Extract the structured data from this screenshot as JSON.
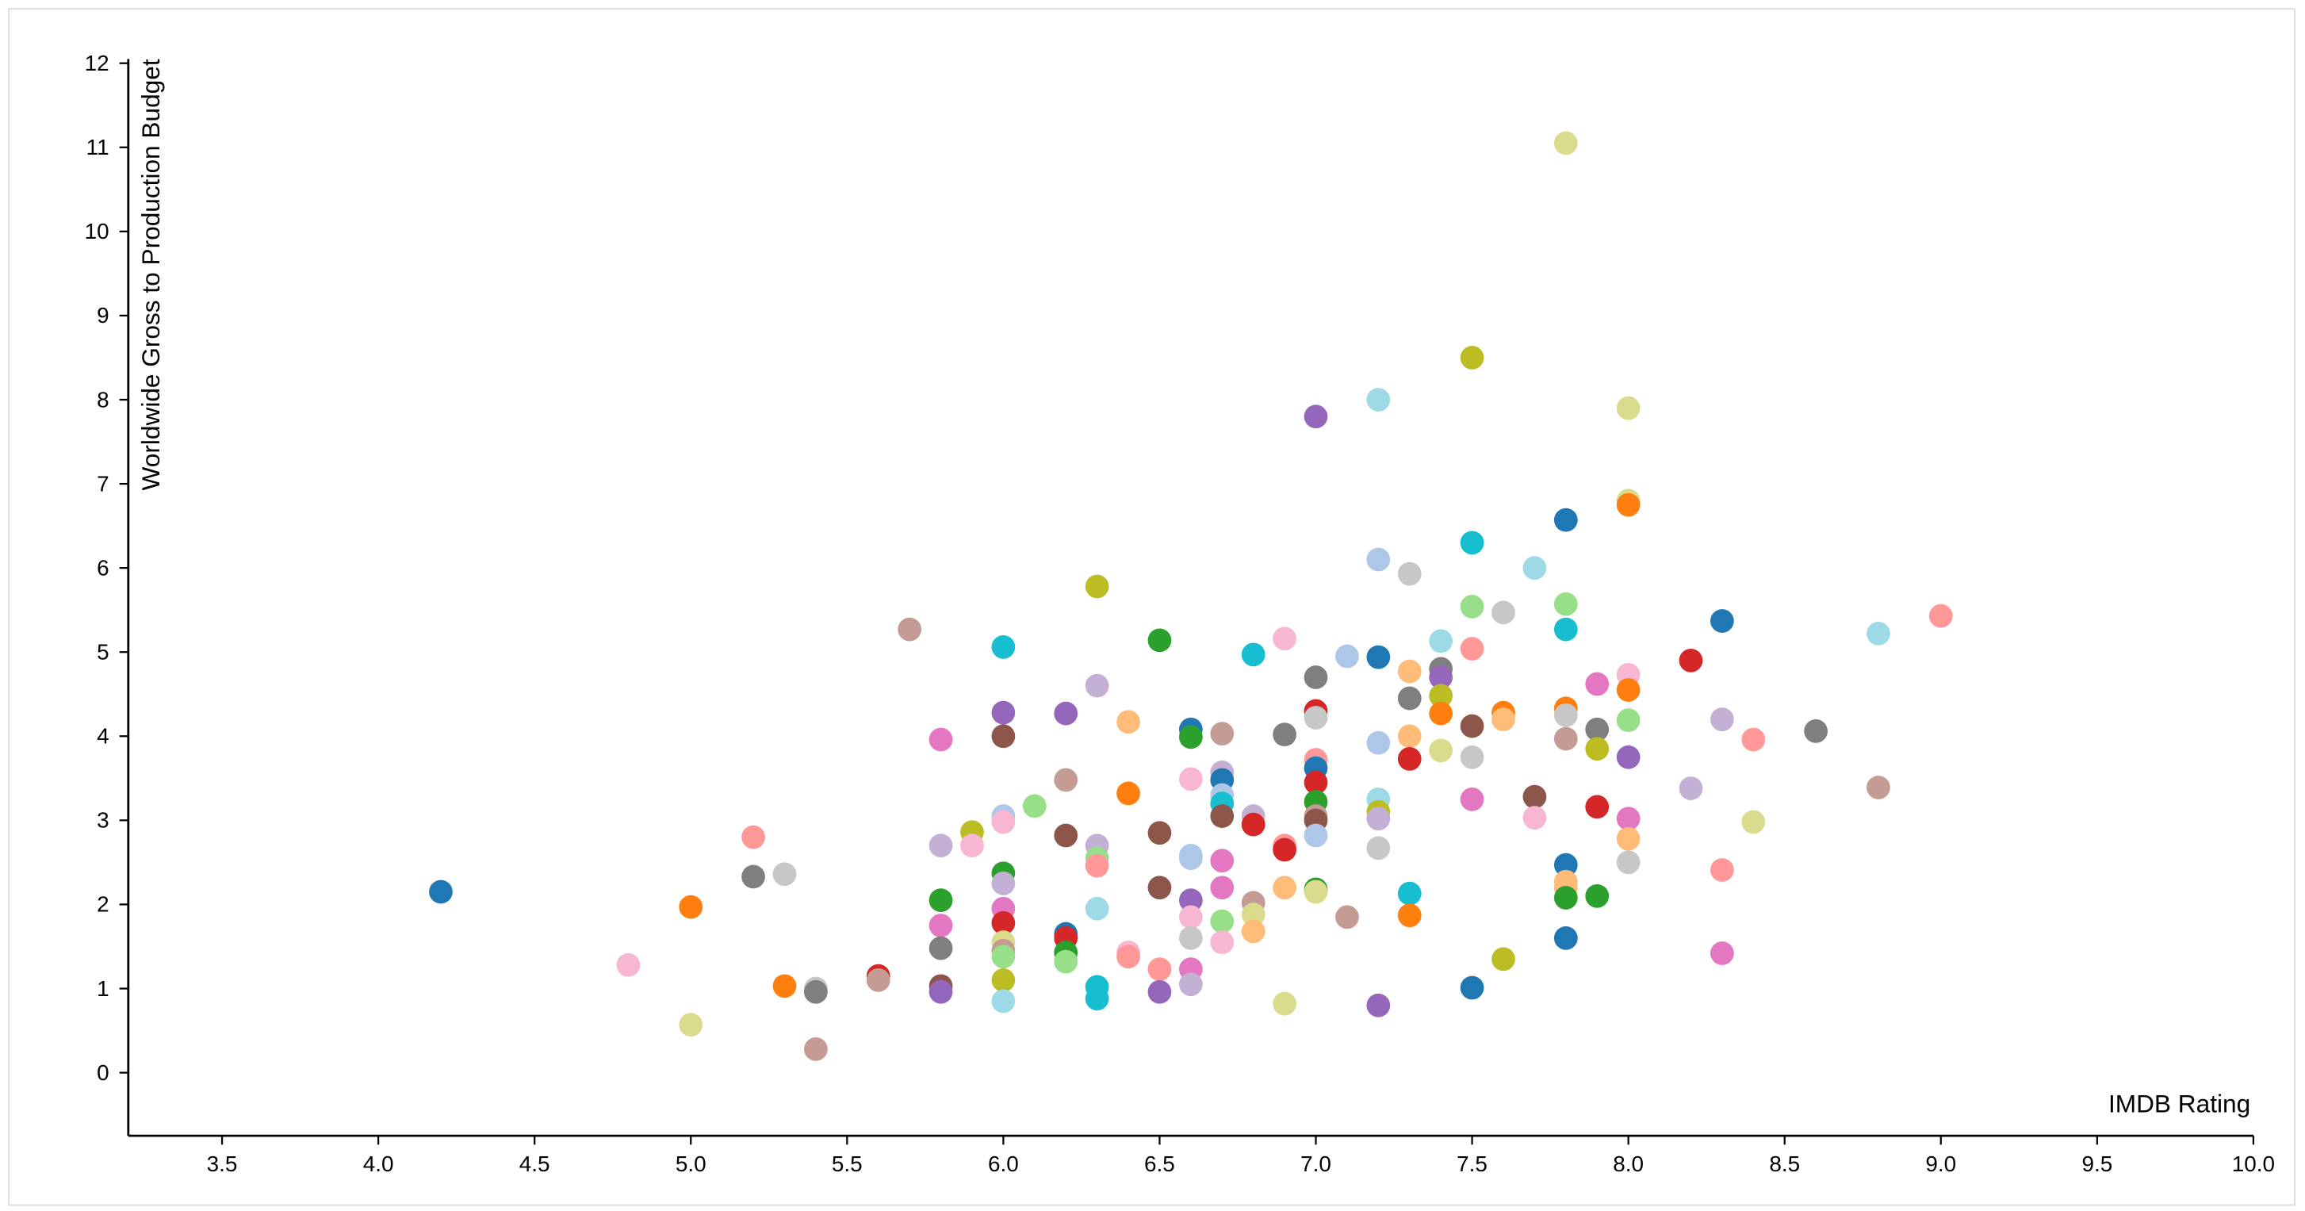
{
  "chart_data": {
    "type": "scatter",
    "x_label": "IMDB Rating",
    "y_label": "Worldwide Gross to Production Budget",
    "xlim": [
      3.2,
      10.0
    ],
    "ylim": [
      -0.75,
      12.05
    ],
    "xticks": [
      3.5,
      {
        "value": 4,
        "label": "4.0"
      },
      4.5,
      {
        "value": 5,
        "label": "5.0"
      },
      5.5,
      {
        "value": 6,
        "label": "6.0"
      },
      6.5,
      {
        "value": 7,
        "label": "7.0"
      },
      7.5,
      {
        "value": 8,
        "label": "8.0"
      },
      8.5,
      {
        "value": 9,
        "label": "9.0"
      },
      9.5,
      {
        "value": 10,
        "label": "10.0"
      }
    ],
    "yticks": [
      0,
      1,
      2,
      3,
      4,
      5,
      6,
      7,
      8,
      9,
      10,
      11,
      12
    ],
    "x": [
      4.2,
      4.8,
      5.0,
      5.0,
      5.2,
      5.2,
      5.3,
      5.3,
      5.4,
      5.4,
      5.4,
      5.6,
      5.6,
      5.7,
      5.8,
      5.8,
      5.8,
      5.8,
      5.8,
      5.8,
      5.8,
      5.9,
      5.9,
      6.0,
      6.0,
      6.0,
      6.0,
      6.0,
      6.0,
      6.0,
      6.0,
      6.0,
      6.0,
      6.0,
      6.0,
      6.0,
      6.0,
      6.1,
      6.2,
      6.2,
      6.2,
      6.2,
      6.2,
      6.2,
      6.2,
      6.3,
      6.3,
      6.3,
      6.3,
      6.3,
      6.3,
      6.3,
      6.3,
      6.4,
      6.4,
      6.4,
      6.4,
      6.5,
      6.5,
      6.5,
      6.5,
      6.5,
      6.6,
      6.6,
      6.6,
      6.6,
      6.6,
      6.6,
      6.6,
      6.6,
      6.6,
      6.6,
      6.7,
      6.7,
      6.7,
      6.7,
      6.7,
      6.7,
      6.7,
      6.7,
      6.7,
      6.7,
      6.8,
      6.8,
      6.8,
      6.8,
      6.8,
      6.8,
      6.9,
      6.9,
      6.9,
      6.9,
      6.9,
      6.9,
      7.0,
      7.0,
      7.0,
      7.0,
      7.0,
      7.0,
      7.0,
      7.0,
      7.0,
      7.0,
      7.0,
      7.0,
      7.0,
      7.1,
      7.1,
      7.2,
      7.2,
      7.2,
      7.2,
      7.2,
      7.2,
      7.2,
      7.2,
      7.2,
      7.3,
      7.3,
      7.3,
      7.3,
      7.3,
      7.3,
      7.3,
      7.4,
      7.4,
      7.4,
      7.4,
      7.4,
      7.4,
      7.5,
      7.5,
      7.5,
      7.5,
      7.5,
      7.5,
      7.5,
      7.5,
      7.6,
      7.6,
      7.6,
      7.6,
      7.7,
      7.7,
      7.7,
      7.8,
      7.8,
      7.8,
      7.8,
      7.8,
      7.8,
      7.8,
      7.8,
      7.8,
      7.8,
      7.8,
      7.8,
      7.9,
      7.9,
      7.9,
      7.9,
      7.9,
      8.0,
      8.0,
      8.0,
      8.0,
      8.0,
      8.0,
      8.0,
      8.0,
      8.0,
      8.0,
      8.2,
      8.2,
      8.3,
      8.3,
      8.3,
      8.3,
      8.4,
      8.4,
      8.6,
      8.8,
      8.8,
      9.0
    ],
    "values": [
      2.15,
      1.28,
      1.97,
      0.57,
      2.8,
      2.33,
      2.36,
      1.03,
      1.0,
      0.96,
      0.28,
      1.15,
      1.1,
      5.27,
      3.96,
      2.7,
      2.05,
      1.75,
      1.48,
      1.03,
      0.96,
      2.86,
      2.7,
      5.06,
      4.28,
      4.0,
      3.05,
      2.98,
      2.37,
      2.25,
      1.95,
      1.78,
      1.55,
      1.45,
      1.38,
      1.1,
      0.85,
      3.17,
      4.27,
      3.48,
      2.82,
      1.65,
      1.6,
      1.43,
      1.32,
      5.78,
      4.6,
      2.7,
      2.55,
      2.46,
      1.95,
      1.02,
      0.88,
      4.17,
      3.32,
      1.43,
      1.38,
      5.14,
      2.85,
      2.2,
      1.23,
      0.96,
      4.08,
      3.99,
      3.49,
      2.58,
      2.55,
      2.05,
      1.85,
      1.6,
      1.23,
      1.05,
      4.03,
      3.57,
      3.48,
      3.3,
      3.2,
      3.05,
      2.52,
      2.2,
      1.8,
      1.55,
      4.97,
      3.05,
      2.95,
      2.02,
      1.88,
      1.68,
      5.16,
      4.02,
      2.7,
      2.65,
      2.2,
      0.82,
      7.8,
      4.7,
      4.3,
      4.22,
      3.72,
      3.62,
      3.45,
      3.22,
      3.05,
      3.0,
      2.82,
      2.18,
      2.15,
      4.95,
      1.85,
      8.0,
      6.1,
      4.94,
      3.92,
      3.25,
      3.1,
      3.02,
      2.67,
      0.8,
      5.93,
      4.77,
      4.45,
      4.0,
      3.73,
      2.13,
      1.87,
      5.13,
      4.8,
      4.7,
      4.48,
      4.27,
      3.83,
      8.5,
      6.3,
      5.54,
      5.04,
      4.12,
      3.75,
      3.25,
      1.01,
      5.47,
      4.28,
      4.2,
      1.35,
      6.0,
      3.28,
      3.03,
      11.05,
      6.57,
      5.57,
      5.27,
      4.33,
      4.25,
      3.97,
      2.47,
      2.27,
      2.2,
      2.08,
      1.6,
      4.62,
      4.08,
      3.85,
      3.16,
      2.1,
      7.9,
      6.8,
      6.75,
      4.73,
      4.55,
      4.19,
      3.75,
      3.02,
      2.78,
      2.5,
      4.9,
      3.38,
      5.37,
      4.2,
      2.41,
      1.42,
      3.96,
      2.98,
      4.06,
      5.22,
      3.39,
      5.43
    ],
    "colors": [
      "#1f77b4",
      "#f7b6d2",
      "#ff7f0e",
      "#dbdb8d",
      "#ff9896",
      "#7f7f7f",
      "#c7c7c7",
      "#ff7f0e",
      "#c7c7c7",
      "#7f7f7f",
      "#c49c94",
      "#d62728",
      "#c49c94",
      "#c49c94",
      "#e377c2",
      "#c5b0d5",
      "#2ca02c",
      "#e377c2",
      "#7f7f7f",
      "#8c564b",
      "#9467bd",
      "#bcbd22",
      "#f7b6d2",
      "#17becf",
      "#9467bd",
      "#8c564b",
      "#aec7e8",
      "#f7b6d2",
      "#2ca02c",
      "#c5b0d5",
      "#e377c2",
      "#d62728",
      "#dbdb8d",
      "#c49c94",
      "#98df8a",
      "#bcbd22",
      "#9edae5",
      "#98df8a",
      "#9467bd",
      "#c49c94",
      "#8c564b",
      "#1f77b4",
      "#d62728",
      "#2ca02c",
      "#98df8a",
      "#bcbd22",
      "#c5b0d5",
      "#c5b0d5",
      "#98df8a",
      "#ff9896",
      "#9edae5",
      "#17becf",
      "#17becf",
      "#ffbb78",
      "#ff7f0e",
      "#f7b6d2",
      "#ff9896",
      "#2ca02c",
      "#8c564b",
      "#8c564b",
      "#ff9896",
      "#9467bd",
      "#1f77b4",
      "#2ca02c",
      "#f7b6d2",
      "#aec7e8",
      "#aec7e8",
      "#9467bd",
      "#f7b6d2",
      "#c7c7c7",
      "#e377c2",
      "#c5b0d5",
      "#c49c94",
      "#c5b0d5",
      "#1f77b4",
      "#aec7e8",
      "#17becf",
      "#8c564b",
      "#e377c2",
      "#e377c2",
      "#98df8a",
      "#f7b6d2",
      "#17becf",
      "#c5b0d5",
      "#d62728",
      "#c49c94",
      "#dbdb8d",
      "#ffbb78",
      "#f7b6d2",
      "#7f7f7f",
      "#ff9896",
      "#d62728",
      "#ffbb78",
      "#dbdb8d",
      "#9467bd",
      "#7f7f7f",
      "#d62728",
      "#c7c7c7",
      "#ff9896",
      "#1f77b4",
      "#d62728",
      "#2ca02c",
      "#c49c94",
      "#8c564b",
      "#aec7e8",
      "#2ca02c",
      "#dbdb8d",
      "#aec7e8",
      "#c49c94",
      "#9edae5",
      "#aec7e8",
      "#1f77b4",
      "#aec7e8",
      "#9edae5",
      "#bcbd22",
      "#c5b0d5",
      "#c7c7c7",
      "#9467bd",
      "#c7c7c7",
      "#ffbb78",
      "#7f7f7f",
      "#ffbb78",
      "#d62728",
      "#17becf",
      "#ff7f0e",
      "#9edae5",
      "#7f7f7f",
      "#9467bd",
      "#bcbd22",
      "#ff7f0e",
      "#dbdb8d",
      "#bcbd22",
      "#17becf",
      "#98df8a",
      "#ff9896",
      "#8c564b",
      "#c7c7c7",
      "#e377c2",
      "#1f77b4",
      "#c7c7c7",
      "#ff7f0e",
      "#ffbb78",
      "#bcbd22",
      "#9edae5",
      "#8c564b",
      "#f7b6d2",
      "#dbdb8d",
      "#1f77b4",
      "#98df8a",
      "#17becf",
      "#ff7f0e",
      "#c7c7c7",
      "#c49c94",
      "#1f77b4",
      "#ffbb78",
      "#ffbb78",
      "#2ca02c",
      "#1f77b4",
      "#e377c2",
      "#7f7f7f",
      "#bcbd22",
      "#d62728",
      "#2ca02c",
      "#dbdb8d",
      "#dbdb8d",
      "#ff7f0e",
      "#f7b6d2",
      "#ff7f0e",
      "#98df8a",
      "#9467bd",
      "#e377c2",
      "#ffbb78",
      "#c7c7c7",
      "#d62728",
      "#c5b0d5",
      "#1f77b4",
      "#c5b0d5",
      "#ff9896",
      "#e377c2",
      "#ff9896",
      "#dbdb8d",
      "#7f7f7f",
      "#9edae5",
      "#c49c94",
      "#ff9896"
    ]
  }
}
